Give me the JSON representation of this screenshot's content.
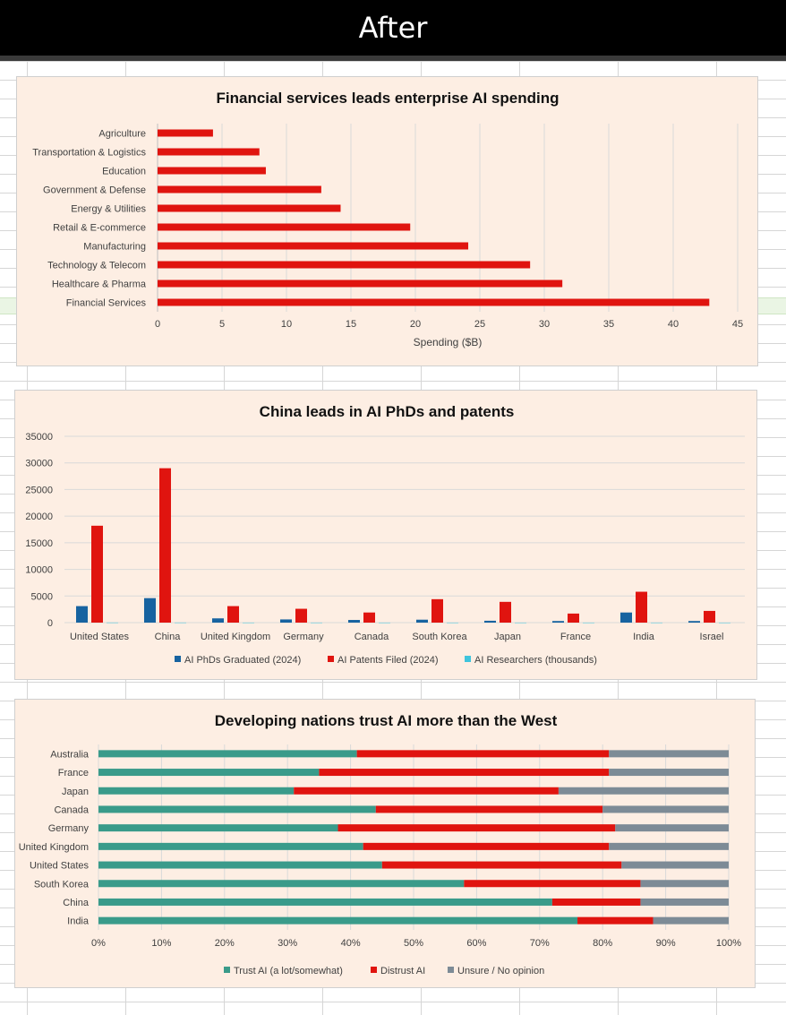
{
  "header": {
    "title": "After"
  },
  "colors": {
    "red": "#e0140f",
    "blue": "#1763a0",
    "cyan": "#3fc4dc",
    "teal": "#3a9b8a",
    "gray": "#7d8b96",
    "grid": "#d9d9d9",
    "panel": "#fdeee3"
  },
  "chart_data": [
    {
      "type": "bar",
      "orientation": "horizontal",
      "title": "Financial services leads enterprise AI spending",
      "xlabel": "Spending ($B)",
      "ylabel": "",
      "xlim": [
        0,
        45
      ],
      "xticks": [
        0,
        5,
        10,
        15,
        20,
        25,
        30,
        35,
        40,
        45
      ],
      "grid": true,
      "categories": [
        "Agriculture",
        "Transportation & Logistics",
        "Education",
        "Government & Defense",
        "Energy & Utilities",
        "Retail & E-commerce",
        "Manufacturing",
        "Technology & Telecom",
        "Healthcare & Pharma",
        "Financial Services"
      ],
      "values": [
        4.3,
        7.9,
        8.4,
        12.7,
        14.2,
        19.6,
        24.1,
        28.9,
        31.4,
        42.8
      ]
    },
    {
      "type": "bar",
      "orientation": "vertical",
      "title": "China leads in AI PhDs and patents",
      "ylim": [
        0,
        35000
      ],
      "yticks": [
        0,
        5000,
        10000,
        15000,
        20000,
        25000,
        30000,
        35000
      ],
      "grid": true,
      "legend": "bottom",
      "categories": [
        "United States",
        "China",
        "United Kingdom",
        "Germany",
        "Canada",
        "South Korea",
        "Japan",
        "France",
        "India",
        "Israel"
      ],
      "series": [
        {
          "name": "AI PhDs Graduated (2024)",
          "values": [
            3100,
            4600,
            800,
            600,
            500,
            550,
            350,
            300,
            1900,
            300
          ]
        },
        {
          "name": "AI Patents Filed (2024)",
          "values": [
            18200,
            29000,
            3100,
            2600,
            1900,
            4400,
            3900,
            1700,
            5800,
            2200
          ]
        },
        {
          "name": "AI Researchers (thousands)",
          "values": [
            15,
            12,
            5,
            4,
            3,
            3,
            3,
            2,
            4,
            1
          ]
        }
      ]
    },
    {
      "type": "bar",
      "orientation": "horizontal",
      "stacked": "percent",
      "title": "Developing nations trust AI more than the West",
      "xlim": [
        0,
        100
      ],
      "xticks": [
        "0%",
        "10%",
        "20%",
        "30%",
        "40%",
        "50%",
        "60%",
        "70%",
        "80%",
        "90%",
        "100%"
      ],
      "grid": true,
      "legend": "bottom",
      "categories": [
        "Australia",
        "France",
        "Japan",
        "Canada",
        "Germany",
        "United Kingdom",
        "United States",
        "South Korea",
        "China",
        "India"
      ],
      "series": [
        {
          "name": "Trust AI (a lot/somewhat)",
          "values": [
            41,
            35,
            31,
            44,
            38,
            42,
            45,
            58,
            72,
            76
          ]
        },
        {
          "name": "Distrust AI",
          "values": [
            40,
            46,
            42,
            36,
            44,
            39,
            38,
            28,
            14,
            12
          ]
        },
        {
          "name": "Unsure / No opinion",
          "values": [
            19,
            19,
            27,
            20,
            18,
            19,
            17,
            14,
            14,
            12
          ]
        }
      ]
    }
  ]
}
